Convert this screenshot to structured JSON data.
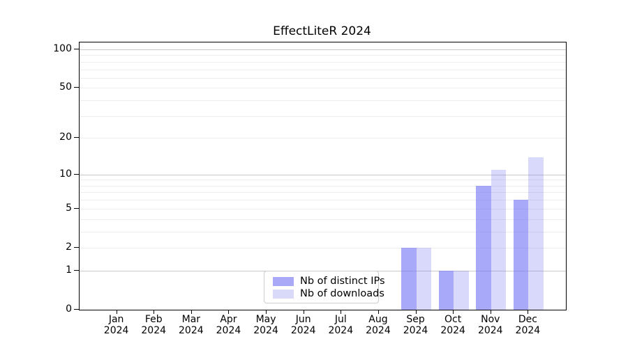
{
  "title": "EffectLiteR 2024",
  "chart_data": {
    "type": "bar",
    "title": "EffectLiteR 2024",
    "categories": [
      "Jan 2024",
      "Feb 2024",
      "Mar 2024",
      "Apr 2024",
      "May 2024",
      "Jun 2024",
      "Jul 2024",
      "Aug 2024",
      "Sep 2024",
      "Oct 2024",
      "Nov 2024",
      "Dec 2024"
    ],
    "x_tick_months": [
      "Jan",
      "Feb",
      "Mar",
      "Apr",
      "May",
      "Jun",
      "Jul",
      "Aug",
      "Sep",
      "Oct",
      "Nov",
      "Dec"
    ],
    "x_tick_year": "2024",
    "series": [
      {
        "name": "Nb of distinct IPs",
        "values": [
          0,
          0,
          0,
          0,
          0,
          0,
          0,
          0,
          2,
          1,
          8,
          6
        ],
        "color": "rgba(119,119,245,0.63)",
        "legend_color": "#a9a9f8"
      },
      {
        "name": "Nb of downloads",
        "values": [
          0,
          0,
          0,
          0,
          0,
          0,
          0,
          0,
          2,
          1,
          11,
          14
        ],
        "color": "rgba(119,119,245,0.28)",
        "legend_color": "#d9d9fa"
      }
    ],
    "xlabel": "",
    "ylabel": "",
    "y_scale": "log1p",
    "y_ticks": [
      0,
      1,
      2,
      5,
      10,
      20,
      50,
      100
    ],
    "y_major_gridlines": [
      1,
      10,
      100
    ],
    "y_minor_gridlines": [
      2,
      3,
      4,
      5,
      6,
      7,
      8,
      9,
      20,
      30,
      40,
      50,
      60,
      70,
      80,
      90
    ],
    "ylim": [
      0,
      115
    ],
    "grid": "on",
    "legend_position": "lower center"
  },
  "colors": {
    "bar_dark": "#a9a9f8",
    "bar_light": "#d9d9fa",
    "grid_major": "#c9c9c9",
    "grid_minor": "#ededed",
    "spine": "#000000",
    "legend_border": "#cccccc"
  }
}
